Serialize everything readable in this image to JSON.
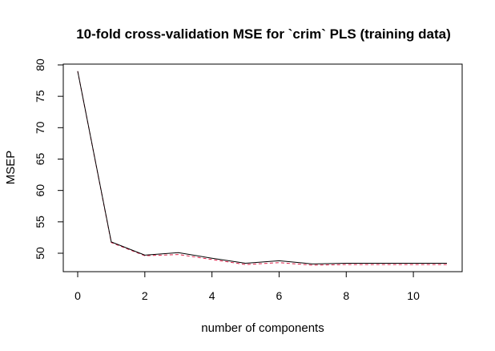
{
  "chart_data": {
    "type": "line",
    "title": "10-fold cross-validation MSE for `crim` PLS (training data)",
    "xlabel": "number of components",
    "ylabel": "MSEP",
    "xlim": [
      0,
      11
    ],
    "ylim": [
      47,
      80
    ],
    "xticks": [
      0,
      2,
      4,
      6,
      8,
      10
    ],
    "yticks": [
      50,
      55,
      60,
      65,
      70,
      75,
      80
    ],
    "grid": false,
    "x": [
      0,
      1,
      2,
      3,
      4,
      5,
      6,
      7,
      8,
      9,
      10,
      11
    ],
    "series": [
      {
        "line_style": "solid",
        "color": "#000000",
        "values": [
          79.0,
          51.8,
          49.7,
          50.1,
          49.2,
          48.4,
          48.8,
          48.3,
          48.4,
          48.4,
          48.4,
          48.4
        ]
      },
      {
        "line_style": "dashed",
        "color": "#e0204a",
        "values": [
          79.0,
          51.7,
          49.6,
          49.8,
          49.0,
          48.2,
          48.5,
          48.1,
          48.2,
          48.2,
          48.2,
          48.2
        ]
      }
    ]
  }
}
